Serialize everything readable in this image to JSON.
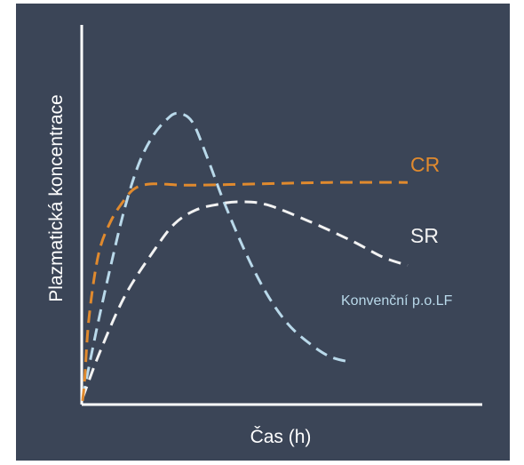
{
  "chart_data": {
    "type": "line",
    "xlabel": "Čas (h)",
    "ylabel": "Plazmatická koncentrace",
    "grid": false,
    "colors": {
      "background": "#3b4557",
      "axis": "#ffffff",
      "CR": "#e08a2e",
      "SR": "#f2f2f2",
      "Konvenční p.o.LF": "#b9d9ea"
    },
    "xlim": [
      0,
      10
    ],
    "ylim": [
      0,
      10
    ],
    "series": [
      {
        "name": "CR",
        "line_style": "dashed",
        "x": [
          0.0,
          0.06,
          0.18,
          0.45,
          0.8,
          1.2,
          1.5,
          2.0,
          3.0,
          5.0,
          7.0,
          9.2
        ],
        "y": [
          0.1,
          0.9,
          3.1,
          5.4,
          6.6,
          7.4,
          7.8,
          7.95,
          7.9,
          7.95,
          8.0,
          8.0
        ]
      },
      {
        "name": "SR",
        "line_style": "dashed",
        "x": [
          0.0,
          0.5,
          1.2,
          2.0,
          2.6,
          3.2,
          3.8,
          4.4,
          5.2,
          6.4,
          7.6,
          8.5,
          9.2
        ],
        "y": [
          0.2,
          1.9,
          3.9,
          5.5,
          6.5,
          7.0,
          7.2,
          7.3,
          7.2,
          6.6,
          5.9,
          5.3,
          5.0
        ]
      },
      {
        "name": "Konvenční p.o.LF",
        "line_style": "dashed",
        "x": [
          0.0,
          0.4,
          0.8,
          1.2,
          1.6,
          2.0,
          2.4,
          2.7,
          3.1,
          3.5,
          4.0,
          4.6,
          5.2,
          5.8,
          6.4,
          7.0,
          7.6
        ],
        "y": [
          0.2,
          2.7,
          5.0,
          7.1,
          8.7,
          9.7,
          10.3,
          10.5,
          10.2,
          9.0,
          7.3,
          5.5,
          4.0,
          2.9,
          2.2,
          1.7,
          1.5
        ]
      }
    ],
    "annotations": [
      {
        "text": "CR",
        "series": "CR"
      },
      {
        "text": "SR",
        "series": "SR"
      },
      {
        "text": "Konvenční p.o.LF",
        "series": "Konvenční p.o.LF"
      }
    ]
  }
}
